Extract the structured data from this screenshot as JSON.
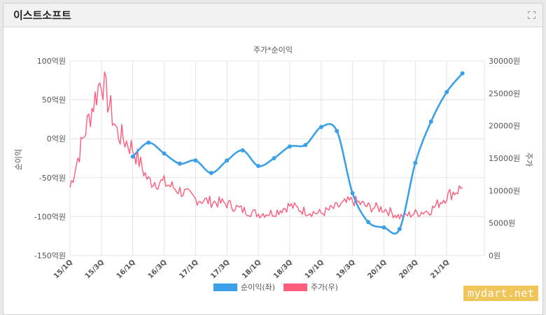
{
  "panel": {
    "title": "이스트소프트"
  },
  "watermark": "mydart.net",
  "colors": {
    "net_income": "#3aa0e8",
    "stock": "#ff5c7c",
    "grid": "#e4e4e4",
    "text": "#555555"
  },
  "chart_data": {
    "type": "line",
    "title": "주가*순이익",
    "x_tick_labels": [
      "15/1Q",
      "15/3Q",
      "16/1Q",
      "16/3Q",
      "17/1Q",
      "17/3Q",
      "18/1Q",
      "18/3Q",
      "19/1Q",
      "19/3Q",
      "20/1Q",
      "20/3Q",
      "21/1Q"
    ],
    "y_left": {
      "label": "순이익",
      "range": [
        -150,
        100
      ],
      "tick_labels": [
        "100억원",
        "50억원",
        "0억원",
        "-50억원",
        "-100억원",
        "-150억원"
      ]
    },
    "y_right": {
      "label": "주가",
      "range": [
        0,
        30000
      ],
      "tick_labels": [
        "30000원",
        "25000원",
        "20000원",
        "15000원",
        "10000원",
        "5000원",
        "0원"
      ]
    },
    "legend": {
      "position": "bottom",
      "items": [
        "순이익(좌)",
        "주가(우)"
      ]
    },
    "grid": true,
    "series": [
      {
        "name": "순이익(좌)",
        "axis": "left",
        "x": [
          "16/1Q",
          "16/2Q",
          "16/3Q",
          "16/4Q",
          "17/1Q",
          "17/2Q",
          "17/3Q",
          "17/4Q",
          "18/1Q",
          "18/2Q",
          "18/3Q",
          "18/4Q",
          "19/1Q",
          "19/2Q",
          "19/3Q",
          "19/4Q",
          "20/1Q",
          "20/2Q",
          "20/3Q",
          "20/4Q",
          "21/1Q",
          "21/2Q"
        ],
        "values": [
          -23,
          -5,
          -19,
          -32,
          -28,
          -44,
          -28,
          -15,
          -35,
          -25,
          -10,
          -8,
          15,
          10,
          -70,
          -107,
          -114,
          -116,
          -31,
          22,
          60,
          84
        ]
      },
      {
        "name": "주가(우)",
        "axis": "right",
        "x": [
          "15/1Q",
          "15/2Q",
          "15/3Q",
          "15/4Q",
          "16/1Q",
          "16/2Q",
          "16/3Q",
          "16/4Q",
          "17/1Q",
          "17/2Q",
          "17/3Q",
          "17/4Q",
          "18/1Q",
          "18/2Q",
          "18/3Q",
          "18/4Q",
          "19/1Q",
          "19/2Q",
          "19/3Q",
          "19/4Q",
          "20/1Q",
          "20/2Q",
          "20/3Q",
          "20/4Q",
          "21/1Q",
          "21/2Q"
        ],
        "values": [
          10500,
          19500,
          27500,
          19000,
          16500,
          11500,
          11200,
          10000,
          8700,
          8300,
          8000,
          7000,
          6400,
          6600,
          7700,
          6800,
          6500,
          7500,
          8500,
          7500,
          7200,
          6000,
          6500,
          7000,
          9200,
          10500
        ]
      }
    ]
  }
}
